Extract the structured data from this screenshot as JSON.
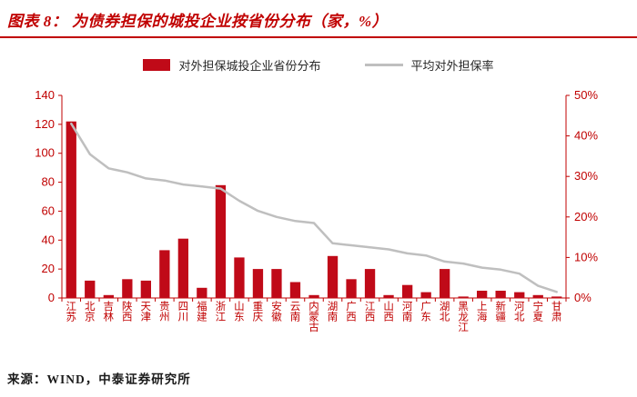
{
  "header": {
    "title": "图表 8： 为债券担保的城投企业按省份分布（家，%）"
  },
  "legend": {
    "bar_label": "对外担保城投企业省份分布",
    "line_label": "平均对外担保率"
  },
  "footer": {
    "source": "来源：WIND，中泰证券研究所"
  },
  "colors": {
    "accent": "#c00000",
    "bar": "#c00a18",
    "line": "#bfbfbf",
    "axis": "#c00000",
    "text": "#262626"
  },
  "chart_data": {
    "type": "bar",
    "subtype": "bar+line-dual-axis",
    "title": "为债券担保的城投企业按省份分布（家，%）",
    "legend_position": "top",
    "grid": false,
    "categories": [
      "江苏",
      "北京",
      "吉林",
      "陕西",
      "天津",
      "贵州",
      "四川",
      "福建",
      "浙江",
      "山东",
      "重庆",
      "安徽",
      "云南",
      "内蒙古",
      "湖南",
      "广西",
      "江西",
      "山西",
      "河南",
      "广东",
      "湖北",
      "黑龙江",
      "上海",
      "新疆",
      "河北",
      "宁夏",
      "甘肃"
    ],
    "series": [
      {
        "name": "对外担保城投企业省份分布",
        "type": "bar",
        "axis": "left",
        "values": [
          122,
          12,
          2,
          13,
          12,
          33,
          41,
          7,
          78,
          28,
          20,
          20,
          11,
          2,
          29,
          13,
          20,
          2,
          9,
          4,
          20,
          1,
          5,
          5,
          4,
          2,
          1
        ]
      },
      {
        "name": "平均对外担保率",
        "type": "line",
        "axis": "right",
        "values": [
          43,
          35.5,
          32,
          31,
          29.5,
          29,
          28,
          27.5,
          27,
          24,
          21.5,
          20,
          19,
          18.5,
          13.5,
          13,
          12.5,
          12,
          11,
          10.5,
          9,
          8.5,
          7.5,
          7,
          6,
          3,
          1.5
        ]
      }
    ],
    "left_axis": {
      "min": 0,
      "max": 140,
      "ticks": [
        0,
        20,
        40,
        60,
        80,
        100,
        120,
        140
      ]
    },
    "right_axis": {
      "min": 0,
      "max": 50,
      "tick_values": [
        0,
        10,
        20,
        30,
        40,
        50
      ],
      "tick_labels": [
        "0%",
        "10%",
        "20%",
        "30%",
        "40%",
        "50%"
      ]
    }
  }
}
